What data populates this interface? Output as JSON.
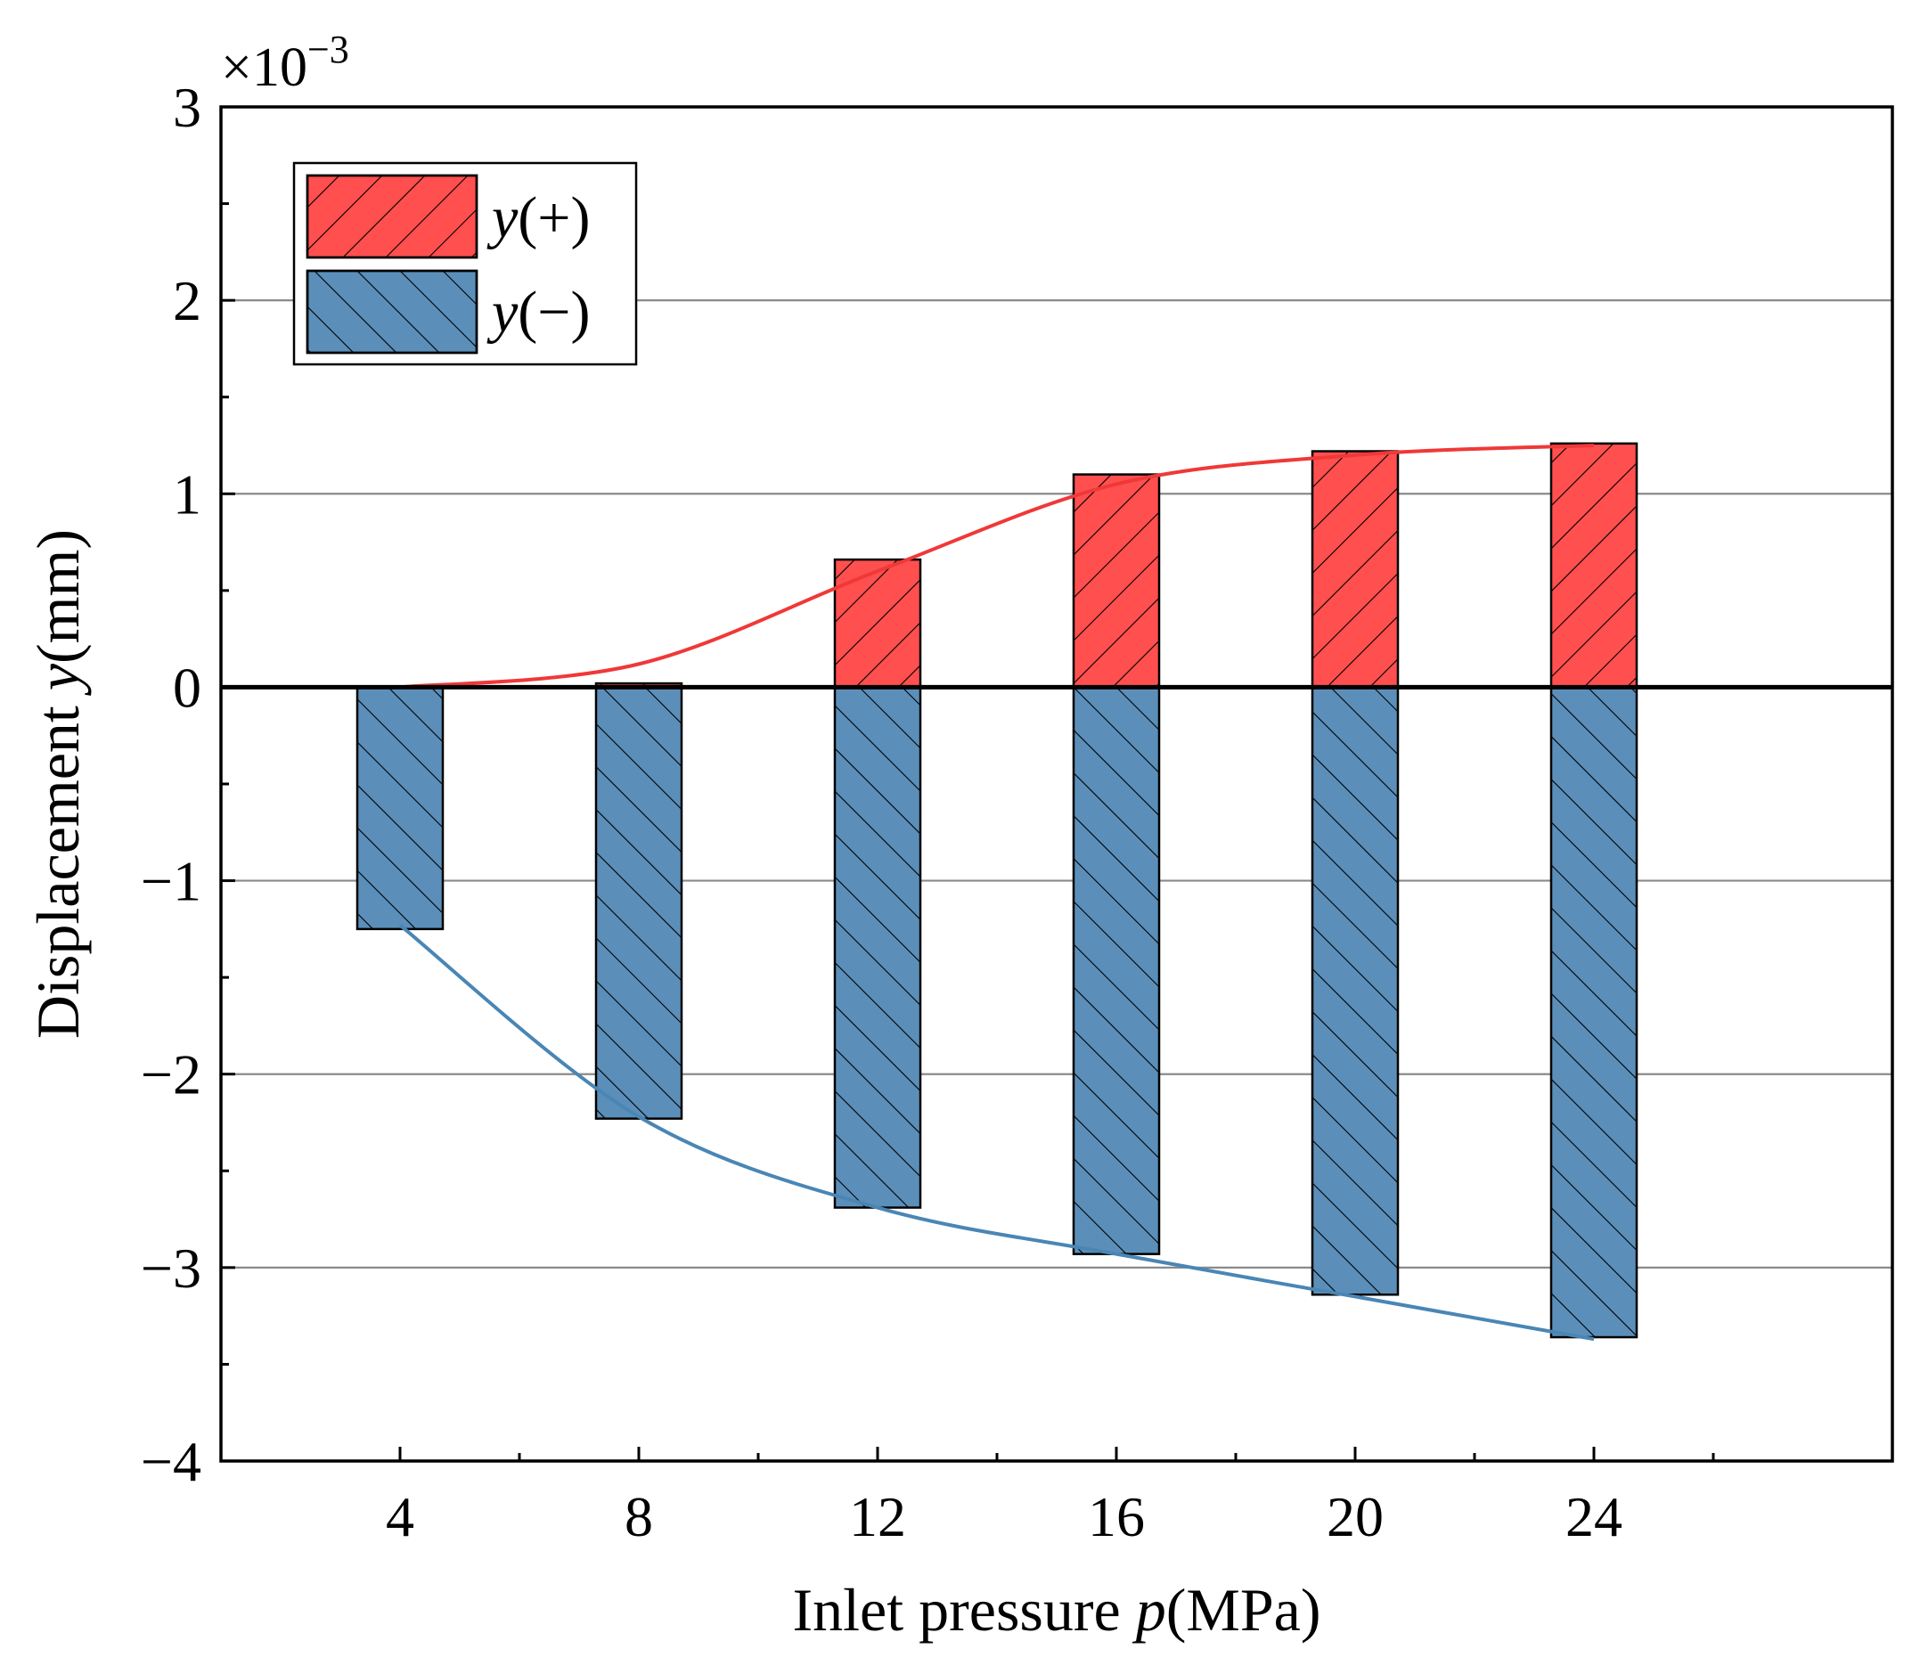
{
  "chart_data": {
    "type": "bar",
    "xlabel": "Inlet pressure p(MPa)",
    "xlabel_parts": {
      "pre": "Inlet pressure ",
      "var": "p",
      "post": "(MPa)"
    },
    "ylabel": "Displacement y(mm)",
    "ylabel_parts": {
      "pre": "Displacement ",
      "var": "y",
      "post": "(mm)"
    },
    "y_multiplier": "×10−3",
    "y_multiplier_parts": {
      "base": "×10",
      "exp": "−3"
    },
    "categories": [
      4,
      8,
      12,
      16,
      20,
      24
    ],
    "xlim": [
      1,
      29
    ],
    "ylim": [
      -4,
      3
    ],
    "y_ticks": [
      3,
      2,
      1,
      0,
      -1,
      -2,
      -3,
      -4
    ],
    "y_tick_labels": [
      "3",
      "2",
      "1",
      "0",
      "−1",
      "−2",
      "−3",
      "−4"
    ],
    "x_tick_labels": [
      "4",
      "8",
      "12",
      "16",
      "20",
      "24"
    ],
    "grid": true,
    "legend_position": "top-left",
    "series": [
      {
        "name": "y(+)",
        "name_var": "y",
        "name_sign": "(+)",
        "color": "#ff4f4f",
        "hatch": "forward-diagonal",
        "values": [
          0.0,
          0.02,
          0.66,
          1.1,
          1.22,
          1.26
        ],
        "trend": [
          0.0,
          0.12,
          0.6,
          1.05,
          1.2,
          1.25
        ]
      },
      {
        "name": "y(−)",
        "name_var": "y",
        "name_sign": "(−)",
        "color": "#5b8fba",
        "hatch": "back-diagonal",
        "values": [
          -1.25,
          -2.23,
          -2.69,
          -2.93,
          -3.14,
          -3.36
        ],
        "trend": [
          -1.23,
          -2.22,
          -2.69,
          -2.93,
          -3.15,
          -3.37
        ]
      }
    ]
  }
}
